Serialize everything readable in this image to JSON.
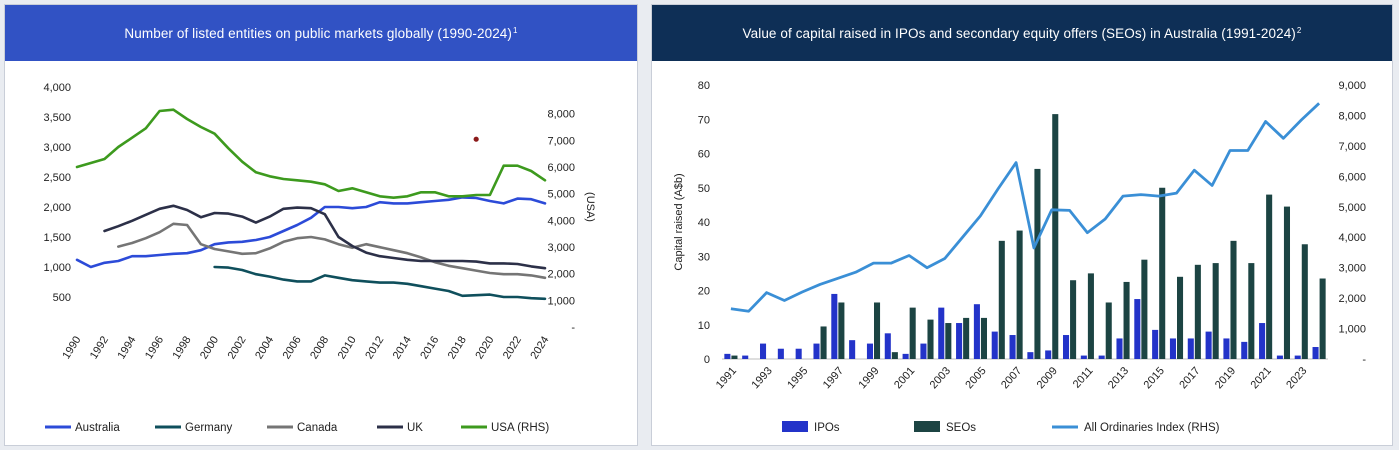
{
  "left_panel": {
    "title": "Number of listed entities on public markets globally (1990-2024)",
    "footnote": "1"
  },
  "right_panel": {
    "title": "Value of capital raised in IPOs and secondary equity offers (SEOs) in Australia (1991-2024)",
    "footnote": "2"
  },
  "chart_data": [
    {
      "type": "line",
      "title": "Number of listed entities on public markets globally (1990-2024)",
      "y_left": {
        "range": [
          0,
          4000
        ],
        "ticks": [
          500,
          1000,
          1500,
          2000,
          2500,
          3000,
          3500,
          4000
        ],
        "tick_labels": [
          "500",
          "1,000",
          "1,500",
          "2,000",
          "2,500",
          "3,000",
          "3,500",
          "4,000"
        ]
      },
      "y_right": {
        "label": "(USA)",
        "range": [
          0,
          9000
        ],
        "ticks": [
          0,
          1000,
          2000,
          3000,
          4000,
          5000,
          6000,
          7000,
          8000
        ],
        "tick_labels": [
          "-",
          "1,000",
          "2,000",
          "3,000",
          "4,000",
          "5,000",
          "6,000",
          "7,000",
          "8,000"
        ]
      },
      "x_ticks": [
        "1990",
        "1992",
        "1994",
        "1996",
        "1998",
        "2000",
        "2002",
        "2004",
        "2006",
        "2008",
        "2010",
        "2012",
        "2014",
        "2016",
        "2018",
        "2020",
        "2022",
        "2024"
      ],
      "legend_position": "bottom",
      "grid": false,
      "series": [
        {
          "name": "Australia",
          "axis": "left",
          "color": "#2c4bd8",
          "x": [
            1990,
            1991,
            1992,
            1993,
            1994,
            1995,
            1996,
            1997,
            1998,
            1999,
            2000,
            2001,
            2002,
            2003,
            2004,
            2005,
            2006,
            2007,
            2008,
            2009,
            2010,
            2011,
            2012,
            2013,
            2014,
            2015,
            2016,
            2017,
            2018,
            2019,
            2020,
            2021,
            2022,
            2023,
            2024
          ],
          "values": [
            1120,
            1000,
            1070,
            1100,
            1180,
            1180,
            1200,
            1220,
            1230,
            1280,
            1380,
            1410,
            1420,
            1450,
            1500,
            1600,
            1700,
            1820,
            2000,
            2000,
            1980,
            2000,
            2080,
            2060,
            2060,
            2080,
            2100,
            2120,
            2160,
            2150,
            2100,
            2060,
            2140,
            2130,
            2060
          ]
        },
        {
          "name": "Germany",
          "axis": "left",
          "color": "#0f4f5c",
          "x": [
            2000,
            2001,
            2002,
            2003,
            2004,
            2005,
            2006,
            2007,
            2008,
            2009,
            2010,
            2011,
            2012,
            2013,
            2014,
            2015,
            2016,
            2017,
            2018,
            2019,
            2020,
            2021,
            2022,
            2023,
            2024
          ],
          "values": [
            1000,
            990,
            950,
            880,
            840,
            790,
            760,
            760,
            860,
            820,
            780,
            760,
            740,
            740,
            720,
            680,
            640,
            600,
            520,
            530,
            540,
            500,
            500,
            480,
            470
          ]
        },
        {
          "name": "Canada",
          "axis": "left",
          "color": "#757575",
          "x": [
            1993,
            1994,
            1995,
            1996,
            1997,
            1998,
            1999,
            2000,
            2001,
            2002,
            2003,
            2004,
            2005,
            2006,
            2007,
            2008,
            2009,
            2010,
            2011,
            2012,
            2013,
            2014,
            2015,
            2016,
            2017,
            2018,
            2019,
            2020,
            2021,
            2022,
            2023,
            2024
          ],
          "values": [
            1340,
            1400,
            1480,
            1580,
            1720,
            1700,
            1380,
            1300,
            1260,
            1220,
            1230,
            1310,
            1420,
            1480,
            1500,
            1460,
            1380,
            1320,
            1380,
            1330,
            1280,
            1230,
            1160,
            1080,
            1020,
            980,
            940,
            900,
            880,
            880,
            860,
            820
          ]
        },
        {
          "name": "UK",
          "axis": "left",
          "color": "#2c3048",
          "x": [
            1992,
            1993,
            1994,
            1995,
            1996,
            1997,
            1998,
            1999,
            2000,
            2001,
            2002,
            2003,
            2004,
            2005,
            2006,
            2007,
            2008,
            2009,
            2010,
            2011,
            2012,
            2013,
            2014,
            2015,
            2016,
            2017,
            2018,
            2019,
            2020,
            2021,
            2022,
            2023,
            2024
          ],
          "values": [
            1600,
            1680,
            1770,
            1870,
            1970,
            2020,
            1950,
            1830,
            1900,
            1890,
            1840,
            1740,
            1840,
            1970,
            1990,
            1980,
            1880,
            1500,
            1350,
            1240,
            1180,
            1150,
            1120,
            1100,
            1100,
            1100,
            1100,
            1090,
            1060,
            1060,
            1050,
            1010,
            980
          ]
        },
        {
          "name": "USA (RHS)",
          "axis": "right",
          "color": "#3d9a1e",
          "x": [
            1990,
            1991,
            1992,
            1993,
            1994,
            1995,
            1996,
            1997,
            1998,
            1999,
            2000,
            2001,
            2002,
            2003,
            2004,
            2005,
            2006,
            2007,
            2008,
            2009,
            2010,
            2011,
            2012,
            2013,
            2014,
            2015,
            2016,
            2017,
            2018,
            2019,
            2020,
            2021,
            2022,
            2023,
            2024
          ],
          "values": [
            6000,
            6150,
            6300,
            6750,
            7100,
            7450,
            8100,
            8150,
            7800,
            7500,
            7250,
            6700,
            6200,
            5800,
            5650,
            5550,
            5500,
            5450,
            5350,
            5100,
            5200,
            5050,
            4900,
            4850,
            4900,
            5050,
            5050,
            4900,
            4900,
            4950,
            4950,
            6050,
            6050,
            5850,
            5500
          ]
        }
      ],
      "annotations": [
        {
          "type": "marker",
          "x": 2019,
          "y_left": 3130,
          "color": "#8b1a1a"
        }
      ]
    },
    {
      "type": "bar",
      "title": "Value of capital raised in IPOs and secondary equity offers (SEOs) in Australia (1991-2024)",
      "y_left": {
        "label": "Capital raised (A$b)",
        "range": [
          0,
          80
        ],
        "ticks": [
          0,
          10,
          20,
          30,
          40,
          50,
          60,
          70,
          80
        ]
      },
      "y_right": {
        "range": [
          0,
          9000
        ],
        "ticks": [
          0,
          1000,
          2000,
          3000,
          4000,
          5000,
          6000,
          7000,
          8000,
          9000
        ],
        "tick_labels": [
          "-",
          "1,000",
          "2,000",
          "3,000",
          "4,000",
          "5,000",
          "6,000",
          "7,000",
          "8,000",
          "9,000"
        ]
      },
      "categories": [
        1991,
        1992,
        1993,
        1994,
        1995,
        1996,
        1997,
        1998,
        1999,
        2000,
        2001,
        2002,
        2003,
        2004,
        2005,
        2006,
        2007,
        2008,
        2009,
        2010,
        2011,
        2012,
        2013,
        2014,
        2015,
        2016,
        2017,
        2018,
        2019,
        2020,
        2021,
        2022,
        2023,
        2024
      ],
      "x_tick_labels": [
        "1991",
        "1993",
        "1995",
        "1997",
        "1999",
        "2001",
        "2003",
        "2005",
        "2007",
        "2009",
        "2011",
        "2013",
        "2015",
        "2017",
        "2019",
        "2021",
        "2023"
      ],
      "legend_position": "bottom",
      "grid": false,
      "series": [
        {
          "name": "IPOs",
          "type": "bar",
          "axis": "left",
          "color": "#2333c9",
          "values": [
            1.5,
            1,
            4.5,
            3,
            3,
            4.5,
            19,
            5.5,
            4.5,
            7.5,
            1.5,
            4.5,
            15,
            10.5,
            16,
            8,
            7,
            2,
            2.5,
            7,
            1,
            1,
            6,
            17.5,
            8.5,
            6,
            6,
            8,
            6,
            5,
            10.5,
            1,
            1,
            3.5
          ]
        },
        {
          "name": "SEOs",
          "type": "bar",
          "axis": "left",
          "color": "#1c4443",
          "values": [
            1,
            0,
            0,
            0,
            0,
            9.5,
            16.5,
            0,
            16.5,
            2,
            15,
            11.5,
            10.5,
            12,
            12,
            34.5,
            37.5,
            55.5,
            71.5,
            23,
            25,
            16.5,
            22.5,
            29,
            50,
            24,
            27.5,
            28,
            34.5,
            28,
            48,
            44.5,
            33.5,
            23.5
          ]
        },
        {
          "name": "All Ordinaries Index (RHS)",
          "type": "line",
          "axis": "right",
          "color": "#3a8fd6",
          "values": [
            1650,
            1570,
            2180,
            1920,
            2200,
            2450,
            2650,
            2850,
            3150,
            3150,
            3400,
            3000,
            3300,
            4000,
            4700,
            5600,
            6450,
            3650,
            4900,
            4880,
            4150,
            4600,
            5350,
            5400,
            5350,
            5450,
            6200,
            5700,
            6850,
            6850,
            7800,
            7250,
            7850,
            8400
          ]
        }
      ]
    }
  ]
}
